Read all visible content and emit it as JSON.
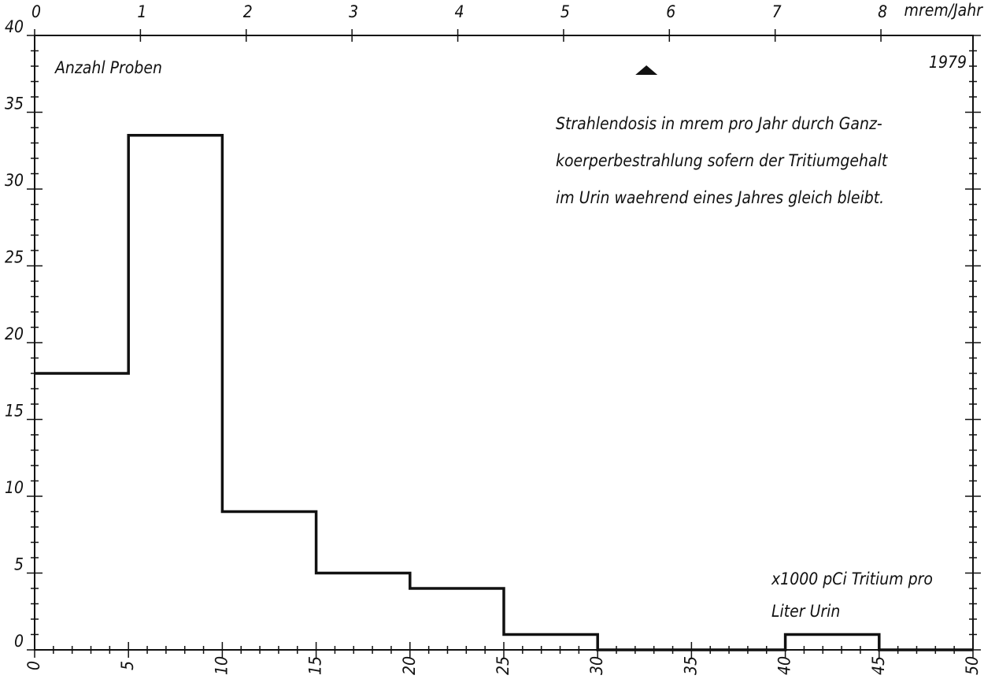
{
  "chart_data": {
    "type": "histogram",
    "y_label": "Anzahl Proben",
    "year": "1979",
    "annotation": [
      "Strahlendosis in mrem pro Jahr durch Ganz-",
      "koerperbestrahlung sofern der Tritiumgehalt",
      "im Urin waehrend eines Jahres gleich bleibt."
    ],
    "x_label": [
      "x1000 pCi Tritium pro",
      "Liter Urin"
    ],
    "x2_label": "mrem/Jahr",
    "bins": [
      0,
      5,
      10,
      15,
      20,
      25,
      30,
      35,
      40,
      45,
      50
    ],
    "values": [
      18,
      33.5,
      9,
      5,
      4,
      1,
      0,
      0,
      1,
      0
    ],
    "color": "#111111",
    "xlim": [
      0,
      50
    ],
    "xticks": [
      0,
      5,
      10,
      15,
      20,
      25,
      30,
      35,
      40,
      45,
      50
    ],
    "ylim": [
      0,
      40
    ],
    "yticks": [
      0,
      5,
      10,
      15,
      20,
      25,
      30,
      35,
      40
    ],
    "x2lim": [
      0,
      8.87
    ],
    "x2ticks": [
      0,
      1,
      2,
      3,
      4,
      5,
      6,
      7,
      8
    ],
    "arrow_x": 32.6
  }
}
